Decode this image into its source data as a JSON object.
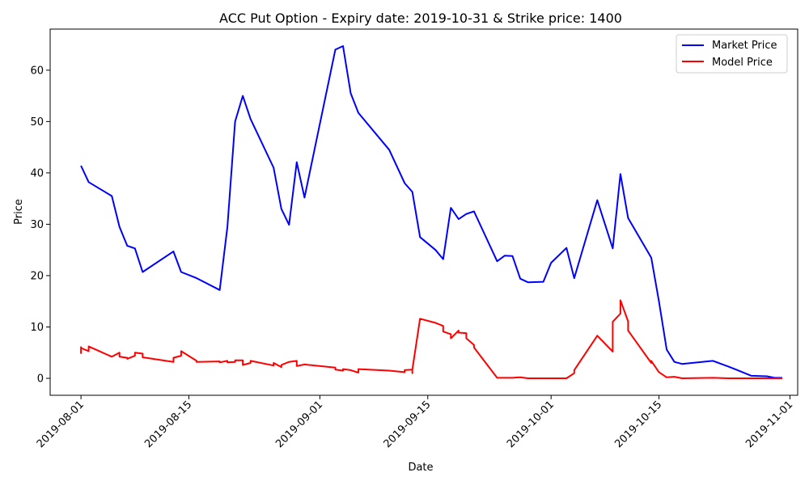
{
  "chart_data": {
    "type": "line",
    "title": "ACC Put Option - Expiry date: 2019-10-31 & Strike price: 1400",
    "xlabel": "Date",
    "ylabel": "Price",
    "x_axis": "date",
    "xlim": [
      "2019-07-28",
      "2019-11-02"
    ],
    "ylim": [
      -3.3,
      68
    ],
    "x_ticks": [
      "2019-08-01",
      "2019-08-15",
      "2019-09-01",
      "2019-09-15",
      "2019-10-01",
      "2019-10-15",
      "2019-11-01"
    ],
    "y_ticks": [
      0,
      10,
      20,
      30,
      40,
      50,
      60
    ],
    "grid": false,
    "legend_position": "top-right",
    "series": [
      {
        "name": "Market Price",
        "color": "#0000ff",
        "points": [
          [
            "2019-08-01",
            41.4
          ],
          [
            "2019-08-02",
            38.2
          ],
          [
            "2019-08-05",
            35.5
          ],
          [
            "2019-08-06",
            29.5
          ],
          [
            "2019-08-07",
            25.8
          ],
          [
            "2019-08-08",
            25.3
          ],
          [
            "2019-08-09",
            20.7
          ],
          [
            "2019-08-13",
            24.7
          ],
          [
            "2019-08-14",
            20.7
          ],
          [
            "2019-08-16",
            19.5
          ],
          [
            "2019-08-19",
            17.2
          ],
          [
            "2019-08-20",
            29.5
          ],
          [
            "2019-08-21",
            50.0
          ],
          [
            "2019-08-22",
            55.0
          ],
          [
            "2019-08-23",
            50.5
          ],
          [
            "2019-08-26",
            41.0
          ],
          [
            "2019-08-27",
            33.0
          ],
          [
            "2019-08-28",
            29.9
          ],
          [
            "2019-08-29",
            42.1
          ],
          [
            "2019-08-30",
            35.2
          ],
          [
            "2019-09-03",
            64.0
          ],
          [
            "2019-09-04",
            64.7
          ],
          [
            "2019-09-05",
            55.5
          ],
          [
            "2019-09-06",
            51.7
          ],
          [
            "2019-09-10",
            44.5
          ],
          [
            "2019-09-12",
            38.0
          ],
          [
            "2019-09-13",
            36.3
          ],
          [
            "2019-09-14",
            27.5
          ],
          [
            "2019-09-16",
            25.0
          ],
          [
            "2019-09-17",
            23.2
          ],
          [
            "2019-09-18",
            33.2
          ],
          [
            "2019-09-19",
            31.0
          ],
          [
            "2019-09-20",
            32.0
          ],
          [
            "2019-09-21",
            32.5
          ],
          [
            "2019-09-24",
            22.8
          ],
          [
            "2019-09-25",
            23.9
          ],
          [
            "2019-09-26",
            23.8
          ],
          [
            "2019-09-27",
            19.4
          ],
          [
            "2019-09-28",
            18.7
          ],
          [
            "2019-09-30",
            18.8
          ],
          [
            "2019-10-01",
            22.5
          ],
          [
            "2019-10-03",
            25.4
          ],
          [
            "2019-10-04",
            19.5
          ],
          [
            "2019-10-07",
            34.7
          ],
          [
            "2019-10-09",
            25.3
          ],
          [
            "2019-10-10",
            39.8
          ],
          [
            "2019-10-11",
            31.2
          ],
          [
            "2019-10-14",
            23.5
          ],
          [
            "2019-10-15",
            15.0
          ],
          [
            "2019-10-16",
            5.6
          ],
          [
            "2019-10-17",
            3.2
          ],
          [
            "2019-10-18",
            2.8
          ],
          [
            "2019-10-22",
            3.4
          ],
          [
            "2019-10-24",
            2.3
          ],
          [
            "2019-10-25",
            1.7
          ],
          [
            "2019-10-27",
            0.5
          ],
          [
            "2019-10-29",
            0.4
          ],
          [
            "2019-10-30",
            0.1
          ],
          [
            "2019-10-31",
            0.1
          ]
        ]
      },
      {
        "name": "Model Price",
        "color": "#ff0000",
        "points": [
          [
            "2019-08-01",
            6.2
          ],
          [
            "2019-08-01",
            4.9
          ],
          [
            "2019-08-01",
            5.9
          ],
          [
            "2019-08-02",
            5.3
          ],
          [
            "2019-08-02",
            6.2
          ],
          [
            "2019-08-05",
            4.2
          ],
          [
            "2019-08-06",
            5.0
          ],
          [
            "2019-08-06",
            4.2
          ],
          [
            "2019-08-07",
            4.0
          ],
          [
            "2019-08-07",
            3.8
          ],
          [
            "2019-08-08",
            4.4
          ],
          [
            "2019-08-08",
            5.0
          ],
          [
            "2019-08-09",
            4.8
          ],
          [
            "2019-08-09",
            4.1
          ],
          [
            "2019-08-13",
            3.2
          ],
          [
            "2019-08-13",
            4.0
          ],
          [
            "2019-08-14",
            4.4
          ],
          [
            "2019-08-14",
            5.3
          ],
          [
            "2019-08-16",
            3.4
          ],
          [
            "2019-08-16",
            3.2
          ],
          [
            "2019-08-19",
            3.3
          ],
          [
            "2019-08-19",
            3.1
          ],
          [
            "2019-08-20",
            3.4
          ],
          [
            "2019-08-20",
            3.1
          ],
          [
            "2019-08-21",
            3.2
          ],
          [
            "2019-08-21",
            3.5
          ],
          [
            "2019-08-22",
            3.5
          ],
          [
            "2019-08-22",
            2.6
          ],
          [
            "2019-08-23",
            3.0
          ],
          [
            "2019-08-23",
            3.4
          ],
          [
            "2019-08-26",
            2.5
          ],
          [
            "2019-08-26",
            3.0
          ],
          [
            "2019-08-27",
            2.2
          ],
          [
            "2019-08-27",
            2.6
          ],
          [
            "2019-08-28",
            3.2
          ],
          [
            "2019-08-29",
            3.4
          ],
          [
            "2019-08-29",
            2.4
          ],
          [
            "2019-08-30",
            2.7
          ],
          [
            "2019-09-03",
            2.1
          ],
          [
            "2019-09-03",
            1.7
          ],
          [
            "2019-09-04",
            1.5
          ],
          [
            "2019-09-04",
            1.8
          ],
          [
            "2019-09-05",
            1.6
          ],
          [
            "2019-09-06",
            1.1
          ],
          [
            "2019-09-06",
            1.8
          ],
          [
            "2019-09-10",
            1.5
          ],
          [
            "2019-09-12",
            1.2
          ],
          [
            "2019-09-12",
            1.6
          ],
          [
            "2019-09-13",
            1.7
          ],
          [
            "2019-09-13",
            1.0
          ],
          [
            "2019-09-13",
            1.7
          ],
          [
            "2019-09-14",
            11.6
          ],
          [
            "2019-09-16",
            10.8
          ],
          [
            "2019-09-17",
            10.2
          ],
          [
            "2019-09-17",
            9.1
          ],
          [
            "2019-09-18",
            8.6
          ],
          [
            "2019-09-18",
            7.8
          ],
          [
            "2019-09-19",
            9.3
          ],
          [
            "2019-09-19",
            8.9
          ],
          [
            "2019-09-20",
            8.8
          ],
          [
            "2019-09-20",
            7.8
          ],
          [
            "2019-09-21",
            6.5
          ],
          [
            "2019-09-21",
            6.0
          ],
          [
            "2019-09-24",
            0.1
          ],
          [
            "2019-09-25",
            0.1
          ],
          [
            "2019-09-26",
            0.1
          ],
          [
            "2019-09-27",
            0.2
          ],
          [
            "2019-09-28",
            0.0
          ],
          [
            "2019-09-30",
            0.0
          ],
          [
            "2019-10-01",
            0.0
          ],
          [
            "2019-10-03",
            0.0
          ],
          [
            "2019-10-04",
            1.0
          ],
          [
            "2019-10-04",
            1.6
          ],
          [
            "2019-10-07",
            8.3
          ],
          [
            "2019-10-09",
            5.2
          ],
          [
            "2019-10-09",
            11.0
          ],
          [
            "2019-10-10",
            12.6
          ],
          [
            "2019-10-10",
            15.2
          ],
          [
            "2019-10-11",
            11.1
          ],
          [
            "2019-10-11",
            9.6
          ],
          [
            "2019-10-11",
            9.3
          ],
          [
            "2019-10-14",
            3.0
          ],
          [
            "2019-10-14",
            3.4
          ],
          [
            "2019-10-15",
            1.2
          ],
          [
            "2019-10-16",
            0.2
          ],
          [
            "2019-10-17",
            0.3
          ],
          [
            "2019-10-18",
            0.0
          ],
          [
            "2019-10-22",
            0.1
          ],
          [
            "2019-10-24",
            0.0
          ],
          [
            "2019-10-25",
            0.0
          ],
          [
            "2019-10-27",
            0.0
          ],
          [
            "2019-10-29",
            0.0
          ],
          [
            "2019-10-30",
            0.0
          ],
          [
            "2019-10-31",
            0.0
          ]
        ]
      }
    ]
  }
}
